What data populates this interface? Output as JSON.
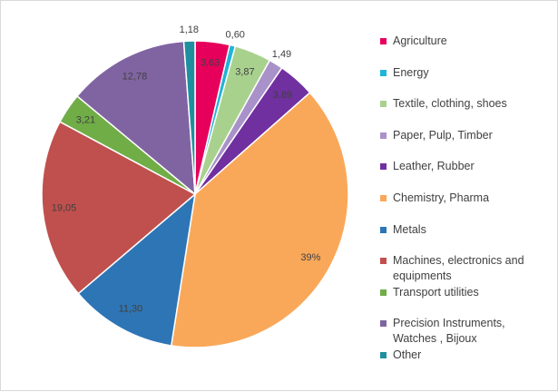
{
  "chart_data": {
    "type": "pie",
    "categories": [
      "Agriculture",
      "Energy",
      "Textile, clothing, shoes",
      "Paper, Pulp, Timber",
      "Leather, Rubber",
      "Chemistry, Pharma",
      "Metals",
      "Machines, electronics and equipments",
      "Transport utilities",
      "Precision Instruments, Watches , Bijoux",
      "Other"
    ],
    "values": [
      3.63,
      0.6,
      3.87,
      1.49,
      3.89,
      39,
      11.3,
      19.05,
      3.21,
      12.78,
      1.18
    ],
    "value_labels": [
      "3,63",
      "0,60",
      "3,87",
      "1,49",
      "3,89",
      "39%",
      "11,30",
      "19,05",
      "3,21",
      "12,78",
      "1,18"
    ],
    "colors": [
      "#e6005c",
      "#1fb5d6",
      "#a9d18e",
      "#a991c9",
      "#7030a0",
      "#f9a85a",
      "#2e75b6",
      "#c0504d",
      "#70ad47",
      "#8064a2",
      "#1f8fa0"
    ],
    "legend": "right"
  }
}
